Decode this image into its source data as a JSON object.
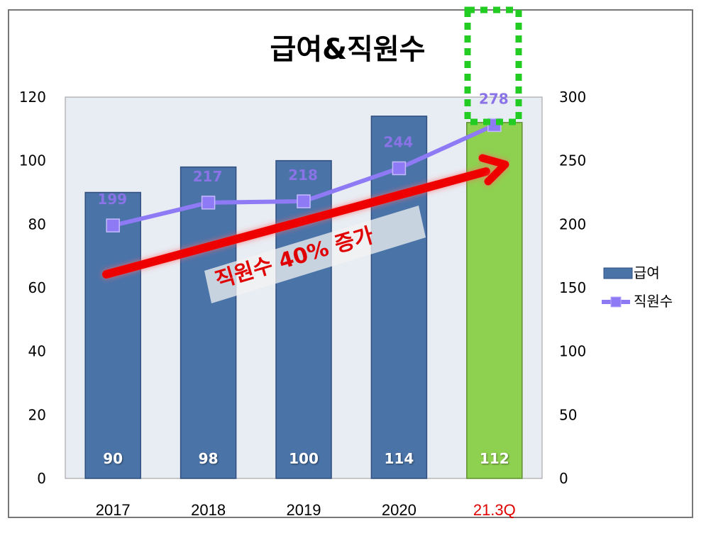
{
  "chart_data": {
    "type": "bar",
    "title": "급여&직원수",
    "categories": [
      "2017",
      "2018",
      "2019",
      "2020",
      "21.3Q"
    ],
    "series": [
      {
        "name": "급여",
        "kind": "bar",
        "axis": "left",
        "values": [
          90,
          98,
          100,
          114,
          112
        ],
        "color": "#4a73a8"
      },
      {
        "name": "직원수",
        "kind": "line",
        "axis": "right",
        "values": [
          199,
          217,
          218,
          244,
          278
        ],
        "color": "#8f7af5"
      }
    ],
    "highlight": {
      "category": "21.3Q",
      "bar_color": "#8ed04f",
      "label_color": "#e00000",
      "box_color": "#22cc22"
    },
    "y_left": {
      "min": 0,
      "max": 120,
      "ticks": [
        0,
        20,
        40,
        60,
        80,
        100,
        120
      ]
    },
    "y_right": {
      "min": 0,
      "max": 300,
      "ticks": [
        0,
        50,
        100,
        150,
        200,
        250,
        300
      ]
    },
    "grid": false,
    "legend_position": "right",
    "annotation": {
      "text": "직원수 40% 증가",
      "color": "#e00000"
    }
  }
}
